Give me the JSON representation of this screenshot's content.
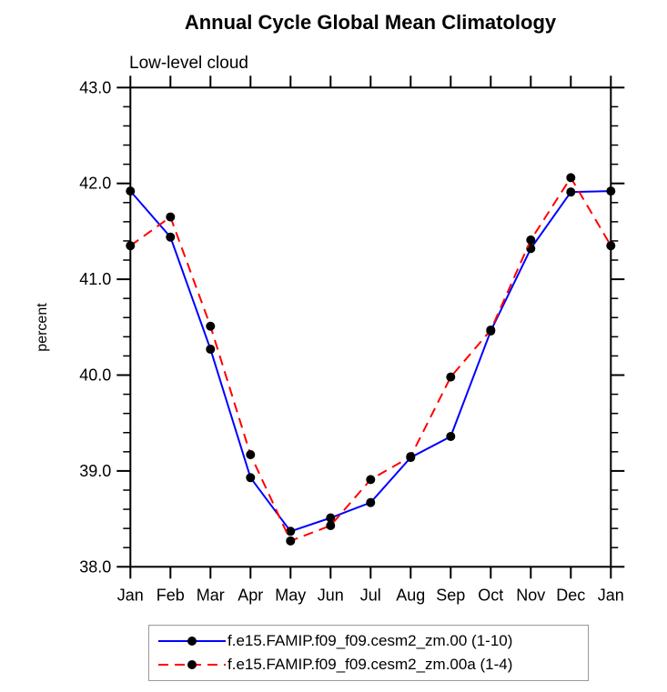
{
  "chart": {
    "title": "Annual Cycle Global Mean Climatology",
    "subtitle": "Low-level cloud",
    "ylabel": "percent"
  },
  "chart_data": {
    "type": "line",
    "title": "Annual Cycle Global Mean Climatology",
    "subtitle": "Low-level cloud",
    "xlabel": "",
    "ylabel": "percent",
    "categories": [
      "Jan",
      "Feb",
      "Mar",
      "Apr",
      "May",
      "Jun",
      "Jul",
      "Aug",
      "Sep",
      "Oct",
      "Nov",
      "Dec",
      "Jan"
    ],
    "ylim": [
      38.0,
      43.0
    ],
    "ytick_interval": 1.0,
    "yminor_interval": 0.2,
    "ytick_labels": [
      "38.0",
      "39.0",
      "40.0",
      "41.0",
      "42.0",
      "43.0"
    ],
    "grid": false,
    "legend_position": "bottom",
    "series": [
      {
        "name": "f.e15.FAMIP.f09_f09.cesm2_zm.00 (1-10)",
        "color": "#0000ff",
        "line_style": "solid",
        "marker": "filled-circle",
        "marker_color": "#000000",
        "values": [
          41.92,
          41.44,
          40.27,
          38.93,
          38.37,
          38.51,
          38.67,
          39.14,
          39.36,
          40.46,
          41.32,
          41.91,
          41.92
        ]
      },
      {
        "name": "f.e15.FAMIP.f09_f09.cesm2_zm.00a (1-4)",
        "color": "#ff0000",
        "line_style": "dashed",
        "marker": "filled-circle",
        "marker_color": "#000000",
        "values": [
          41.35,
          41.65,
          40.51,
          39.17,
          38.27,
          38.43,
          38.91,
          39.15,
          39.98,
          40.47,
          41.41,
          42.06,
          41.35
        ]
      }
    ]
  },
  "colors": {
    "axis": "#000000",
    "marker": "#000000",
    "series1": "#0000ff",
    "series2": "#ff0000",
    "legend_border": "#999999",
    "background": "#ffffff"
  }
}
